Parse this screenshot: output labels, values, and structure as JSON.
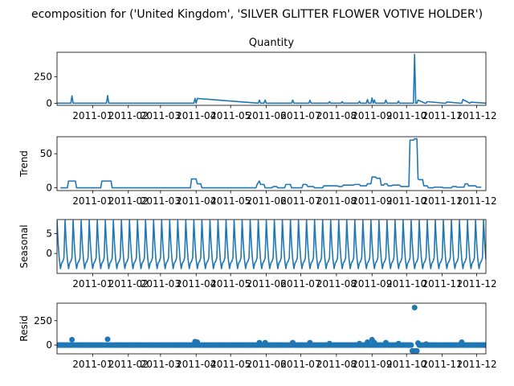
{
  "suptitle": "ecomposition for ('United Kingdom', 'SILVER GLITTER FLOWER VOTIVE HOLDER')",
  "colors": {
    "line": "#1f77b4",
    "axes": "#000000",
    "background": "#ffffff"
  },
  "chart_data": [
    {
      "type": "line",
      "title": "Quantity",
      "ylabel": "",
      "xlim": [
        "2010-12-01",
        "2011-12-09"
      ],
      "ylim": [
        -20,
        480
      ],
      "yticks": [
        0,
        250
      ],
      "xticks": [
        "2011-01",
        "2011-02",
        "2011-03",
        "2011-04",
        "2011-05",
        "2011-06",
        "2011-07",
        "2011-08",
        "2011-09",
        "2011-10",
        "2011-11",
        "2011-12"
      ],
      "series": [
        {
          "x": [
            "2010-12-01",
            "2010-12-13",
            "2010-12-14",
            "2010-12-15",
            "2011-01-13",
            "2011-01-14",
            "2011-01-15",
            "2011-03-30",
            "2011-03-31",
            "2011-04-01",
            "2011-04-02",
            "2011-05-25",
            "2011-05-26",
            "2011-05-27",
            "2011-05-30",
            "2011-05-31",
            "2011-06-01",
            "2011-06-23",
            "2011-06-24",
            "2011-06-25",
            "2011-07-08",
            "2011-07-09",
            "2011-07-10",
            "2011-07-25",
            "2011-07-26",
            "2011-07-27",
            "2011-08-05",
            "2011-08-06",
            "2011-08-07",
            "2011-08-20",
            "2011-08-21",
            "2011-08-22",
            "2011-08-27",
            "2011-08-28",
            "2011-08-29",
            "2011-08-31",
            "2011-09-01",
            "2011-09-02",
            "2011-09-03",
            "2011-09-04",
            "2011-09-05",
            "2011-09-12",
            "2011-09-13",
            "2011-09-14",
            "2011-09-23",
            "2011-09-24",
            "2011-09-25",
            "2011-10-07",
            "2011-10-08",
            "2011-10-09",
            "2011-10-10",
            "2011-10-11",
            "2011-10-17",
            "2011-10-18",
            "2011-10-19",
            "2011-11-03",
            "2011-11-04",
            "2011-11-05",
            "2011-11-17",
            "2011-11-18",
            "2011-11-19",
            "2011-11-25",
            "2011-11-26",
            "2011-12-09"
          ],
          "y": [
            0,
            0,
            70,
            0,
            0,
            72,
            0,
            0,
            45,
            0,
            45,
            0,
            30,
            0,
            0,
            30,
            0,
            0,
            30,
            0,
            0,
            28,
            0,
            0,
            15,
            0,
            0,
            15,
            0,
            0,
            18,
            0,
            0,
            35,
            0,
            0,
            50,
            0,
            30,
            0,
            0,
            0,
            30,
            0,
            0,
            20,
            0,
            0,
            460,
            0,
            0,
            30,
            0,
            0,
            15,
            0,
            0,
            12,
            0,
            0,
            35,
            0,
            10,
            0
          ]
        }
      ]
    },
    {
      "type": "line",
      "title": "",
      "ylabel": "Trend",
      "xlim": [
        "2010-12-01",
        "2011-12-09"
      ],
      "ylim": [
        -4,
        75
      ],
      "yticks": [
        0,
        50
      ],
      "xticks": [
        "2011-01",
        "2011-02",
        "2011-03",
        "2011-04",
        "2011-05",
        "2011-06",
        "2011-07",
        "2011-08",
        "2011-09",
        "2011-10",
        "2011-11",
        "2011-12"
      ],
      "series": [
        {
          "x": [
            "2010-12-04",
            "2010-12-10",
            "2010-12-11",
            "2010-12-17",
            "2010-12-18",
            "2011-01-08",
            "2011-01-09",
            "2011-01-17",
            "2011-01-18",
            "2011-03-27",
            "2011-03-28",
            "2011-04-01",
            "2011-04-02",
            "2011-04-05",
            "2011-04-06",
            "2011-05-23",
            "2011-05-24",
            "2011-05-26",
            "2011-05-27",
            "2011-05-30",
            "2011-05-31",
            "2011-06-06",
            "2011-06-07",
            "2011-06-10",
            "2011-06-11",
            "2011-06-17",
            "2011-06-18",
            "2011-06-22",
            "2011-06-23",
            "2011-07-02",
            "2011-07-03",
            "2011-07-06",
            "2011-07-07",
            "2011-07-12",
            "2011-07-13",
            "2011-07-20",
            "2011-07-21",
            "2011-08-02",
            "2011-08-03",
            "2011-08-06",
            "2011-08-07",
            "2011-08-16",
            "2011-08-17",
            "2011-08-21",
            "2011-08-22",
            "2011-08-27",
            "2011-08-28",
            "2011-08-31",
            "2011-09-01",
            "2011-09-04",
            "2011-09-05",
            "2011-09-08",
            "2011-09-09",
            "2011-09-11",
            "2011-09-12",
            "2011-09-14",
            "2011-09-15",
            "2011-09-18",
            "2011-09-19",
            "2011-09-25",
            "2011-09-26",
            "2011-10-03",
            "2011-10-04",
            "2011-10-07",
            "2011-10-08",
            "2011-10-10",
            "2011-10-11",
            "2011-10-12",
            "2011-10-13",
            "2011-10-15",
            "2011-10-16",
            "2011-10-19",
            "2011-10-20",
            "2011-10-24",
            "2011-10-25",
            "2011-11-01",
            "2011-11-02",
            "2011-11-09",
            "2011-11-10",
            "2011-11-13",
            "2011-11-14",
            "2011-11-20",
            "2011-11-21",
            "2011-11-23",
            "2011-11-24",
            "2011-11-30",
            "2011-12-01",
            "2011-12-05"
          ],
          "y": [
            0,
            0,
            10,
            10,
            0,
            0,
            10,
            10,
            0,
            0,
            13,
            13,
            6,
            6,
            0,
            0,
            5,
            10,
            5,
            5,
            0,
            0,
            2,
            2,
            0,
            0,
            5,
            5,
            0,
            0,
            5,
            5,
            2,
            2,
            0,
            0,
            3,
            3,
            2,
            2,
            4,
            4,
            5,
            5,
            3,
            3,
            6,
            6,
            16,
            16,
            14,
            14,
            4,
            4,
            6,
            6,
            3,
            3,
            4,
            4,
            2,
            2,
            70,
            70,
            72,
            72,
            13,
            12,
            12,
            12,
            3,
            3,
            0,
            0,
            1,
            1,
            0,
            0,
            2,
            2,
            1,
            1,
            6,
            6,
            3,
            3,
            1,
            1
          ]
        }
      ]
    },
    {
      "type": "line",
      "title": "",
      "ylabel": "Seasonal",
      "xlim": [
        "2010-12-01",
        "2011-12-09"
      ],
      "ylim": [
        -5,
        8.5
      ],
      "yticks": [
        0,
        5
      ],
      "xticks": [
        "2011-01",
        "2011-02",
        "2011-03",
        "2011-04",
        "2011-05",
        "2011-06",
        "2011-07",
        "2011-08",
        "2011-09",
        "2011-10",
        "2011-11",
        "2011-12"
      ],
      "series": [
        {
          "period_days": 7,
          "pattern": [
            8.3,
            2.5,
            -1.5,
            -3.8,
            -2.4,
            -2.0,
            -1.1
          ],
          "start": "2010-12-01",
          "end": "2011-12-09"
        }
      ]
    },
    {
      "type": "scatter",
      "title": "",
      "ylabel": "Resid",
      "xlim": [
        "2010-12-01",
        "2011-12-09"
      ],
      "ylim": [
        -90,
        430
      ],
      "yticks": [
        0,
        250
      ],
      "xticks": [
        "2011-01",
        "2011-02",
        "2011-03",
        "2011-04",
        "2011-05",
        "2011-06",
        "2011-07",
        "2011-08",
        "2011-09",
        "2011-10",
        "2011-11",
        "2011-12"
      ],
      "baseline": 0,
      "series": [
        {
          "spikes": [
            [
              "2010-12-14",
              55
            ],
            [
              "2011-01-14",
              60
            ],
            [
              "2011-03-31",
              35
            ],
            [
              "2011-04-02",
              30
            ],
            [
              "2011-05-26",
              25
            ],
            [
              "2011-05-31",
              25
            ],
            [
              "2011-06-24",
              25
            ],
            [
              "2011-07-09",
              25
            ],
            [
              "2011-07-26",
              15
            ],
            [
              "2011-08-21",
              15
            ],
            [
              "2011-08-28",
              30
            ],
            [
              "2011-09-01",
              55
            ],
            [
              "2011-09-03",
              25
            ],
            [
              "2011-09-13",
              25
            ],
            [
              "2011-09-24",
              15
            ],
            [
              "2011-10-06",
              -60
            ],
            [
              "2011-10-07",
              -60
            ],
            [
              "2011-10-08",
              385
            ],
            [
              "2011-10-09",
              -60
            ],
            [
              "2011-10-10",
              -60
            ],
            [
              "2011-10-11",
              20
            ],
            [
              "2011-10-18",
              10
            ],
            [
              "2011-11-18",
              30
            ]
          ]
        }
      ]
    }
  ]
}
